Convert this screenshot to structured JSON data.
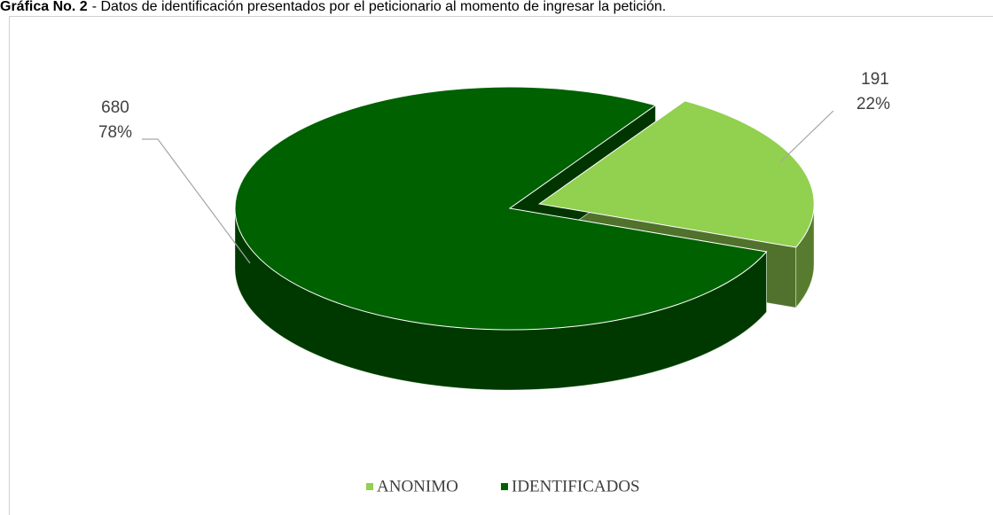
{
  "chart_data": {
    "type": "pie3d",
    "figure_label": "Gráfica No. 2",
    "title": "- Datos de identificación presentados por el peticionario al momento de ingresar la petición.",
    "categories": [
      "ANONIMO",
      "IDENTIFICADOS"
    ],
    "values": [
      191,
      680
    ],
    "percent_labels": [
      "22%",
      "78%"
    ],
    "colors": [
      "#92d050",
      "#006100"
    ],
    "legend": "bottom"
  }
}
